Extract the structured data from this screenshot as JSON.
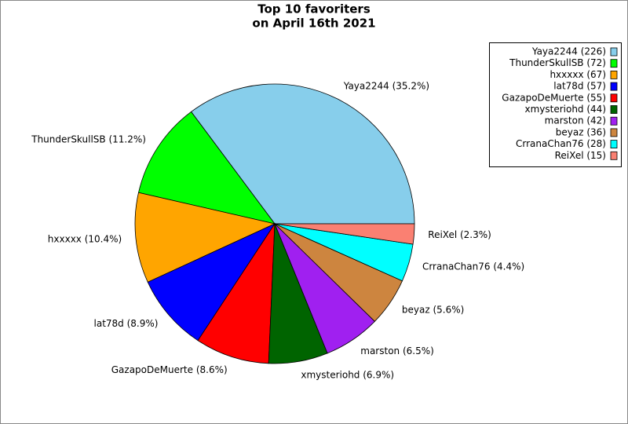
{
  "chart_data": {
    "type": "pie",
    "title": [
      "Top 10 favoriters",
      "on April 16th 2021"
    ],
    "categories": [
      "Yaya2244",
      "ThunderSkullSB",
      "hxxxxx",
      "lat78d",
      "GazapoDeMuerte",
      "xmysteriohd",
      "marston",
      "beyaz",
      "CrranaChan76",
      "ReiXel"
    ],
    "values": [
      226,
      72,
      67,
      57,
      55,
      44,
      42,
      36,
      28,
      15
    ],
    "value_labels": [
      "Yaya2244 (35.2%)",
      "ThunderSkullSB (11.2%)",
      "hxxxxx (10.4%)",
      "lat78d (8.9%)",
      "GazapoDeMuerte (8.6%)",
      "xmysteriohd (6.9%)",
      "marston (6.5%)",
      "beyaz (5.6%)",
      "CrranaChan76 (4.4%)",
      "ReiXel (2.3%)"
    ],
    "legend_labels": [
      "Yaya2244 (226)",
      "ThunderSkullSB (72)",
      "hxxxxx (67)",
      "lat78d (57)",
      "GazapoDeMuerte (55)",
      "xmysteriohd (44)",
      "marston (42)",
      "beyaz (36)",
      "CrranaChan76 (28)",
      "ReiXel (15)"
    ],
    "colors": [
      "#87ceeb",
      "#00ff00",
      "#ffa500",
      "#0000ff",
      "#ff0000",
      "#006400",
      "#a020f0",
      "#cd853f",
      "#00ffff",
      "#fa8072"
    ],
    "legend": "upper right"
  }
}
